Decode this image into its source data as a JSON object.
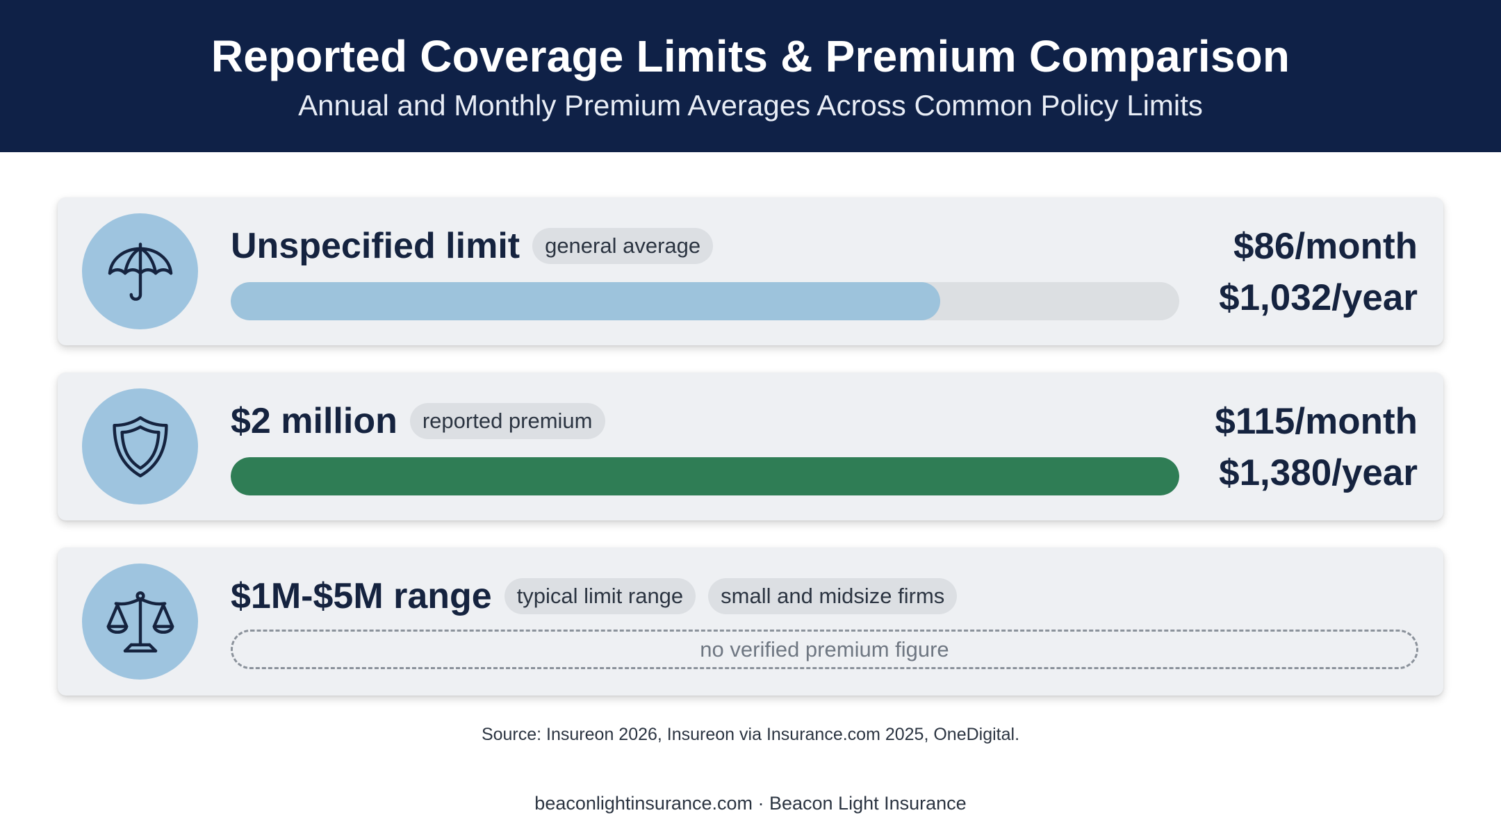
{
  "header": {
    "title": "Reported Coverage Limits & Premium Comparison",
    "subtitle": "Annual and Monthly Premium Averages Across Common Policy Limits"
  },
  "colors": {
    "header_bg": "#0f2147",
    "card_bg": "#eef0f3",
    "icon_circle": "#9ec4df",
    "bar_blue": "#9dc3dc",
    "bar_green": "#2f7d55",
    "track": "#dcdfe2"
  },
  "rows": [
    {
      "icon": "umbrella-icon",
      "name": "Unspecified limit",
      "tags": [
        "general average"
      ],
      "monthly": "$86/month",
      "annual": "$1,032/year"
    },
    {
      "icon": "shield-icon",
      "name": "$2 million",
      "tags": [
        "reported premium"
      ],
      "monthly": "$115/month",
      "annual": "$1,380/year"
    },
    {
      "icon": "scales-icon",
      "name": "$1M-$5M range",
      "tags": [
        "typical limit range",
        "small and midsize firms"
      ],
      "note": "no verified premium figure"
    }
  ],
  "chart_data": {
    "type": "bar",
    "orientation": "horizontal",
    "categories": [
      "Unspecified limit",
      "$2 million",
      "$1M-$5M range"
    ],
    "values": [
      1032,
      1380,
      null
    ],
    "monthly_values": [
      86,
      115,
      null
    ],
    "unit": "USD per year",
    "xlim": [
      0,
      1380
    ],
    "grid": false,
    "bar_colors": [
      "#9dc3dc",
      "#2f7d55",
      null
    ]
  },
  "source": "Source: Insureon 2026, Insureon via Insurance.com 2025, OneDigital.",
  "footer": "beaconlightinsurance.com · Beacon Light Insurance"
}
